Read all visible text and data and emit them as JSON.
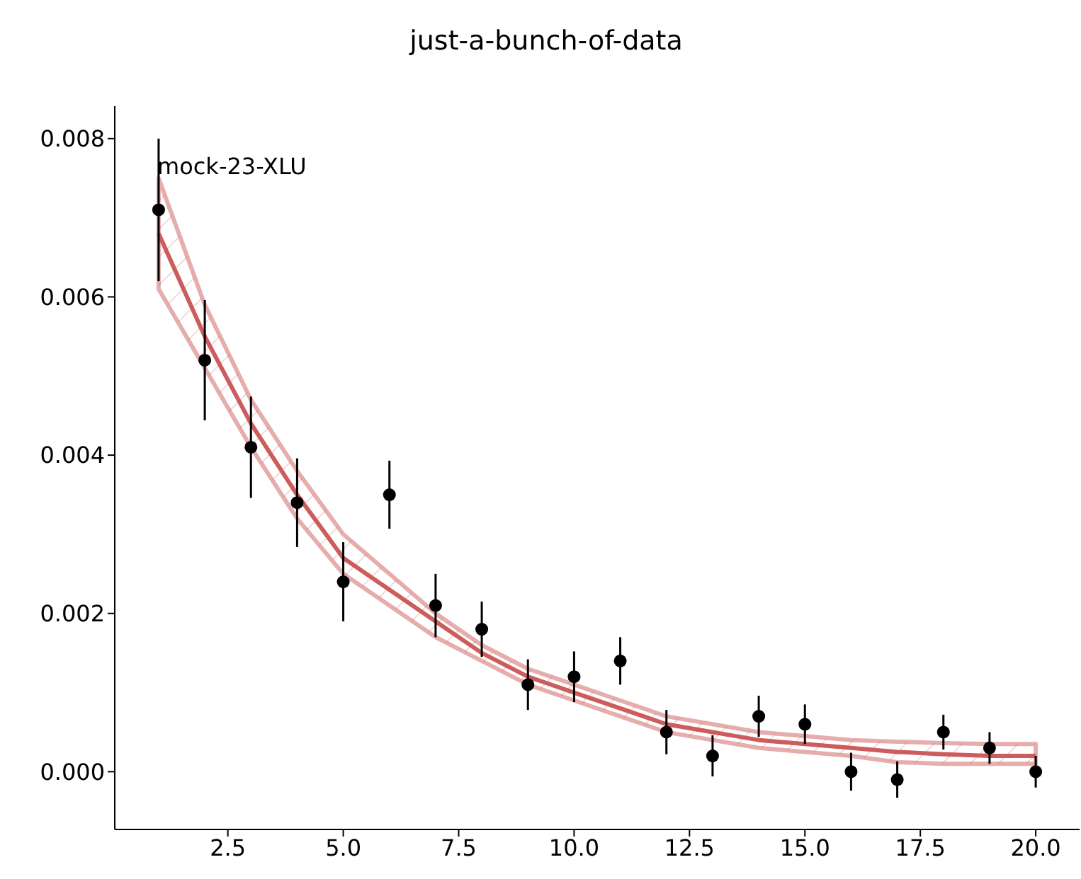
{
  "chart_data": {
    "type": "scatter",
    "title": "just-a-bunch-of-data",
    "annotations": [
      "mock-23-XLU"
    ],
    "xlim": [
      0.05,
      20.95
    ],
    "xticks": [
      {
        "value": 2.5,
        "label": "2.5"
      },
      {
        "value": 5,
        "label": "5.0"
      },
      {
        "value": 7.5,
        "label": "7.5"
      },
      {
        "value": 10,
        "label": "10.0"
      },
      {
        "value": 12.5,
        "label": "12.5"
      },
      {
        "value": 15,
        "label": "15.0"
      },
      {
        "value": 17.5,
        "label": "17.5"
      },
      {
        "value": 20,
        "label": "20.0"
      }
    ],
    "ylim": [
      -0.00073,
      0.00841
    ],
    "yticks": [
      {
        "value": 0,
        "label": "0.000"
      },
      {
        "value": 0.002,
        "label": "0.002"
      },
      {
        "value": 0.004,
        "label": "0.004"
      },
      {
        "value": 0.006,
        "label": "0.006"
      },
      {
        "value": 0.008,
        "label": "0.008"
      }
    ],
    "grid": false,
    "legend": false,
    "x": [
      1,
      2,
      3,
      4,
      5,
      6,
      7,
      8,
      9,
      10,
      11,
      12,
      13,
      14,
      15,
      16,
      17,
      18,
      19,
      20
    ],
    "series": [
      {
        "type": "line",
        "color": "#cd5c5c",
        "marker": "none",
        "values": [
          0.0068,
          0.0055,
          0.0044,
          0.0035,
          0.0027,
          0.0023,
          0.0019,
          0.0015,
          0.0012,
          0.001,
          0.0008,
          0.0006,
          0.0005,
          0.0004,
          0.00035,
          0.0003,
          0.00025,
          0.00022,
          0.0002,
          0.0002
        ],
        "upper": [
          0.0075,
          0.0059,
          0.0047,
          0.0038,
          0.003,
          0.0025,
          0.002,
          0.0016,
          0.0013,
          0.0011,
          0.0009,
          0.0007,
          0.0006,
          0.0005,
          0.00045,
          0.0004,
          0.00038,
          0.00036,
          0.00035,
          0.00035
        ],
        "lower": [
          0.0061,
          0.0051,
          0.0041,
          0.0032,
          0.0025,
          0.0021,
          0.0017,
          0.0014,
          0.0011,
          0.0009,
          0.0007,
          0.0005,
          0.0004,
          0.0003,
          0.00025,
          0.0002,
          0.00012,
          0.0001,
          0.0001,
          0.0001
        ]
      },
      {
        "color": "#000000",
        "marker": "circle",
        "values": [
          0.0071,
          0.0052,
          0.0041,
          0.0034,
          0.0024,
          0.0035,
          0.0021,
          0.0018,
          0.0011,
          0.0012,
          0.0014,
          0.0005,
          0.0002,
          0.0007,
          0.0006,
          0.0,
          -0.0001,
          0.0005,
          0.0003,
          0.0
        ],
        "errors": [
          0.0009,
          0.00076,
          0.00064,
          0.00056,
          0.0005,
          0.00043,
          0.0004,
          0.00035,
          0.00032,
          0.00032,
          0.0003,
          0.00028,
          0.00026,
          0.00026,
          0.00025,
          0.00024,
          0.00023,
          0.00022,
          0.0002,
          0.0002
        ]
      }
    ]
  }
}
